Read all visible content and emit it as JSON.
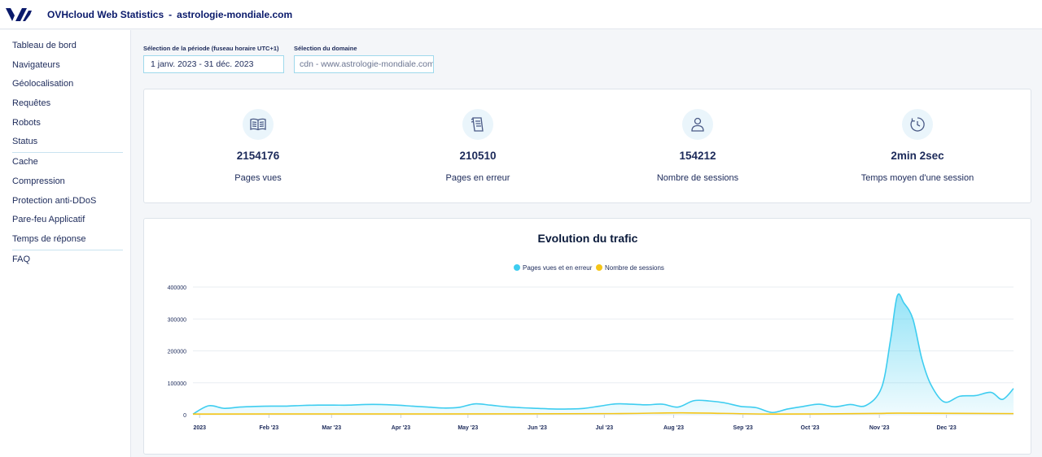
{
  "header": {
    "logo_icon": "ovhcloud-logo-icon",
    "app_name": "OVHcloud Web Statistics",
    "separator": "-",
    "site": "astrologie-mondiale.com"
  },
  "sidebar": {
    "items": [
      {
        "label": "Tableau de bord"
      },
      {
        "label": "Navigateurs"
      },
      {
        "label": "Géolocalisation"
      },
      {
        "label": "Requêtes"
      },
      {
        "label": "Robots"
      },
      {
        "label": "Status"
      },
      {
        "label": "Cache"
      },
      {
        "label": "Compression"
      },
      {
        "label": "Protection anti-DDoS"
      },
      {
        "label": "Pare-feu Applicatif"
      },
      {
        "label": "Temps de réponse"
      },
      {
        "label": "FAQ"
      }
    ]
  },
  "filters": {
    "period_label": "Sélection de la période (fuseau horaire UTC+1)",
    "period_value": "1 janv. 2023 - 31 déc. 2023",
    "domain_label": "Sélection du domaine",
    "domain_value": "cdn - www.astrologie-mondiale.com"
  },
  "stats": [
    {
      "icon": "book-icon",
      "value": "2154176",
      "label": "Pages vues"
    },
    {
      "icon": "broken-page-icon",
      "value": "210510",
      "label": "Pages en erreur"
    },
    {
      "icon": "user-icon",
      "value": "154212",
      "label": "Nombre de sessions"
    },
    {
      "icon": "timer-icon",
      "value": "2min 2sec",
      "label": "Temps moyen d'une session"
    }
  ],
  "colors": {
    "brand": "#0a1a6b",
    "series_pages": "#3ecdf0",
    "series_sessions": "#f5c518"
  },
  "chart_data": {
    "type": "area",
    "title": "Evolution du trafic",
    "xlabel": "",
    "ylabel": "",
    "ylim": [
      0,
      400000
    ],
    "yticks": [
      "0",
      "100000",
      "200000",
      "300000",
      "400000"
    ],
    "x_tick_labels": [
      {
        "label": "2023",
        "date": "2023-01-01"
      },
      {
        "label": "Feb '23",
        "date": "2023-02-01"
      },
      {
        "label": "Mar '23",
        "date": "2023-03-01"
      },
      {
        "label": "Apr '23",
        "date": "2023-04-01"
      },
      {
        "label": "May '23",
        "date": "2023-05-01"
      },
      {
        "label": "Jun '23",
        "date": "2023-06-01"
      },
      {
        "label": "Jul '23",
        "date": "2023-07-01"
      },
      {
        "label": "Aug '23",
        "date": "2023-08-01"
      },
      {
        "label": "Sep '23",
        "date": "2023-09-01"
      },
      {
        "label": "Oct '23",
        "date": "2023-10-01"
      },
      {
        "label": "Nov '23",
        "date": "2023-11-01"
      },
      {
        "label": "Dec '23",
        "date": "2023-12-01"
      }
    ],
    "x_range": [
      "2022-12-29",
      "2023-12-31"
    ],
    "legend_position": "top",
    "grid": true,
    "series": [
      {
        "name": "Pages vues et en erreur",
        "color": "#3ecdf0",
        "points": [
          [
            "2022-12-29",
            2000
          ],
          [
            "2023-01-05",
            28000
          ],
          [
            "2023-01-12",
            20000
          ],
          [
            "2023-01-19",
            24000
          ],
          [
            "2023-01-26",
            26000
          ],
          [
            "2023-02-02",
            27000
          ],
          [
            "2023-02-09",
            27000
          ],
          [
            "2023-02-16",
            29000
          ],
          [
            "2023-02-23",
            30000
          ],
          [
            "2023-03-02",
            30000
          ],
          [
            "2023-03-09",
            30000
          ],
          [
            "2023-03-16",
            32000
          ],
          [
            "2023-03-23",
            32000
          ],
          [
            "2023-03-30",
            30000
          ],
          [
            "2023-04-06",
            27000
          ],
          [
            "2023-04-13",
            24000
          ],
          [
            "2023-04-20",
            21000
          ],
          [
            "2023-04-27",
            23000
          ],
          [
            "2023-05-04",
            34000
          ],
          [
            "2023-05-11",
            30000
          ],
          [
            "2023-05-18",
            25000
          ],
          [
            "2023-05-25",
            22000
          ],
          [
            "2023-06-01",
            20000
          ],
          [
            "2023-06-08",
            18000
          ],
          [
            "2023-06-15",
            18000
          ],
          [
            "2023-06-22",
            20000
          ],
          [
            "2023-06-29",
            27000
          ],
          [
            "2023-07-06",
            34000
          ],
          [
            "2023-07-13",
            33000
          ],
          [
            "2023-07-20",
            31000
          ],
          [
            "2023-07-27",
            33000
          ],
          [
            "2023-08-03",
            24000
          ],
          [
            "2023-08-10",
            44000
          ],
          [
            "2023-08-17",
            43000
          ],
          [
            "2023-08-24",
            37000
          ],
          [
            "2023-08-31",
            26000
          ],
          [
            "2023-09-07",
            22000
          ],
          [
            "2023-09-14",
            7000
          ],
          [
            "2023-09-21",
            18000
          ],
          [
            "2023-09-28",
            26000
          ],
          [
            "2023-10-05",
            33000
          ],
          [
            "2023-10-12",
            25000
          ],
          [
            "2023-10-19",
            32000
          ],
          [
            "2023-10-26",
            29000
          ],
          [
            "2023-11-02",
            85000
          ],
          [
            "2023-11-06",
            235000
          ],
          [
            "2023-11-09",
            372000
          ],
          [
            "2023-11-12",
            350000
          ],
          [
            "2023-11-16",
            300000
          ],
          [
            "2023-11-20",
            175000
          ],
          [
            "2023-11-24",
            95000
          ],
          [
            "2023-11-30",
            40000
          ],
          [
            "2023-12-07",
            58000
          ],
          [
            "2023-12-14",
            60000
          ],
          [
            "2023-12-21",
            70000
          ],
          [
            "2023-12-26",
            48000
          ],
          [
            "2023-12-31",
            82000
          ]
        ]
      },
      {
        "name": "Nombre de sessions",
        "color": "#f5c518",
        "points": [
          [
            "2022-12-29",
            2000
          ],
          [
            "2023-02-15",
            2500
          ],
          [
            "2023-04-15",
            2500
          ],
          [
            "2023-07-05",
            3500
          ],
          [
            "2023-08-05",
            6000
          ],
          [
            "2023-09-15",
            2000
          ],
          [
            "2023-10-30",
            4000
          ],
          [
            "2023-11-10",
            5000
          ],
          [
            "2023-12-31",
            3500
          ]
        ]
      }
    ]
  }
}
